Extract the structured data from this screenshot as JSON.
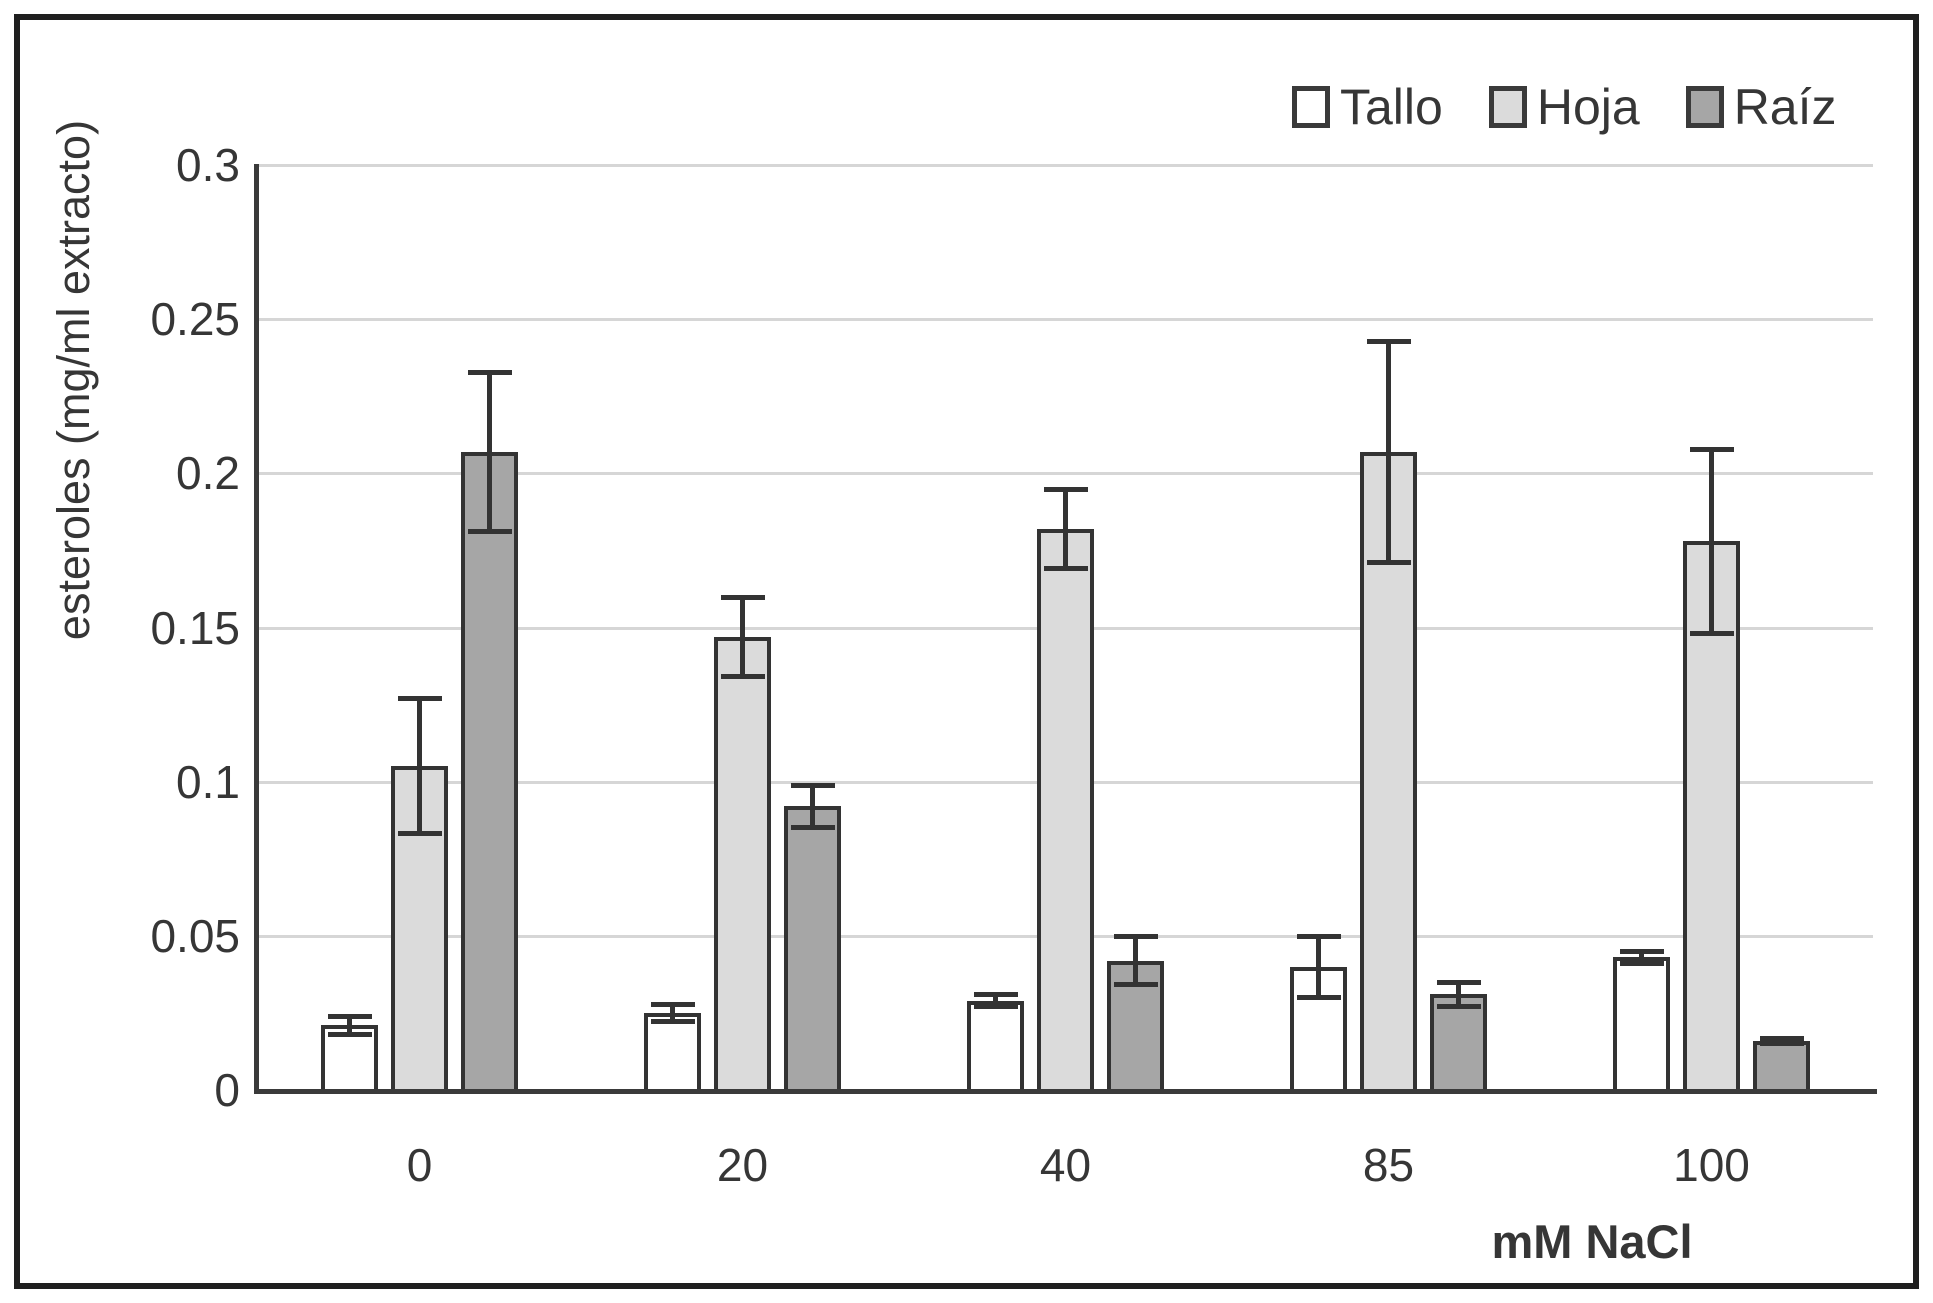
{
  "chart_data": {
    "type": "bar",
    "title": "",
    "xlabel": "mM NaCl",
    "ylabel": "esteroles (mg/ml extracto)",
    "categories": [
      "0",
      "20",
      "40",
      "85",
      "100"
    ],
    "series": [
      {
        "name": "Tallo",
        "fill": "#ffffff",
        "values": [
          0.021,
          0.025,
          0.029,
          0.04,
          0.043
        ],
        "errors": [
          0.003,
          0.003,
          0.002,
          0.01,
          0.002
        ]
      },
      {
        "name": "Hoja",
        "fill": "#dbdbdb",
        "values": [
          0.105,
          0.147,
          0.182,
          0.207,
          0.178
        ],
        "errors": [
          0.022,
          0.013,
          0.013,
          0.036,
          0.03
        ]
      },
      {
        "name": "Raíz",
        "fill": "#a6a6a6",
        "values": [
          0.207,
          0.092,
          0.042,
          0.031,
          0.016
        ],
        "errors": [
          0.026,
          0.007,
          0.008,
          0.004,
          0.001
        ]
      }
    ],
    "ylim": [
      0,
      0.3
    ],
    "ytick_step": 0.05,
    "ytick_labels": [
      "0",
      "0.05",
      "0.1",
      "0.15",
      "0.2",
      "0.25",
      "0.3"
    ],
    "grid": "horizontal",
    "legend_position": "top-right",
    "error_bars": true,
    "colors": {
      "bar_border": "#333333",
      "error_bar": "#333333",
      "axis": "#3a3a3a",
      "gridline": "#d6d6d6",
      "text": "#363636",
      "frame": "#1f1f1f",
      "background": "#ffffff"
    }
  }
}
